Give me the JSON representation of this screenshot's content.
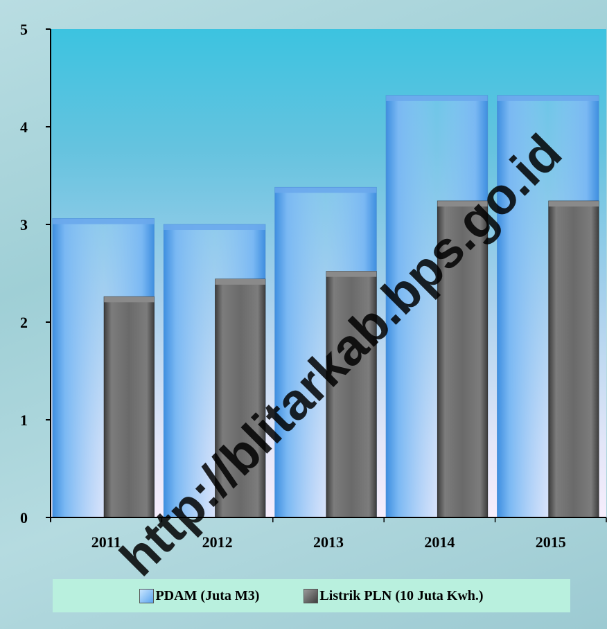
{
  "chart_data": {
    "type": "bar",
    "categories": [
      "2011",
      "2012",
      "2013",
      "2014",
      "2015"
    ],
    "series": [
      {
        "name": "PDAM (Juta M3)",
        "values": [
          3.06,
          3.0,
          3.38,
          4.32,
          4.32
        ],
        "color": "#5aa4ee"
      },
      {
        "name": "Listrik PLN (10 Juta Kwh.)",
        "values": [
          2.26,
          2.44,
          2.52,
          3.24,
          3.24
        ],
        "color": "#6b6b6b"
      }
    ],
    "y_ticks": [
      "0",
      "1",
      "2",
      "3",
      "4",
      "5"
    ],
    "ylim": [
      0,
      5
    ],
    "grid": false,
    "legend_position": "bottom"
  },
  "legend": {
    "pdam_label": "PDAM (Juta M3)",
    "pln_label": "Listrik PLN (10 Juta Kwh.)"
  },
  "watermark": "http://blitarkab.bps.go.id"
}
